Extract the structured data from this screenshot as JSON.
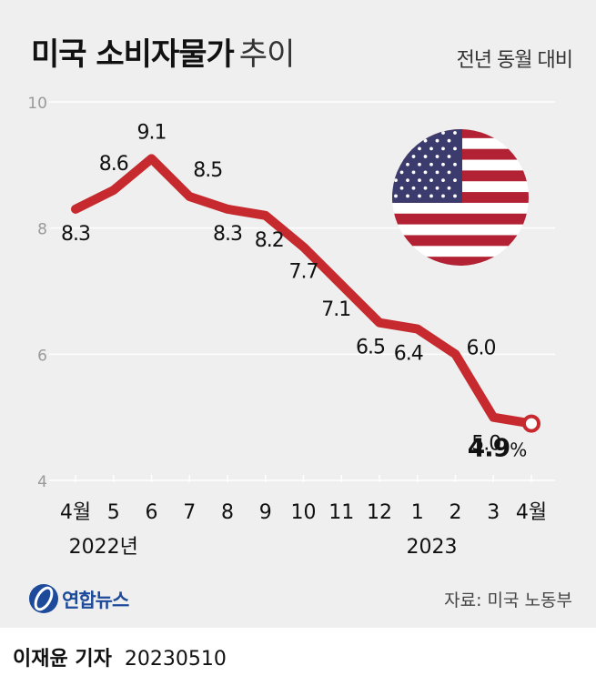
{
  "header": {
    "title_bold": "미국 소비자물가",
    "title_light": "추이",
    "subtitle": "전년 동월 대비"
  },
  "footer": {
    "logo_text": "연합뉴스",
    "source": "자료: 미국 노동부",
    "reporter": "이재윤 기자",
    "date": "20230510"
  },
  "colors": {
    "line": "#c62a2e",
    "accent": "#c62a2e",
    "background": "#efefef",
    "grid": "#ffffff"
  },
  "flag_icon": "us-flag-icon",
  "chart_data": {
    "type": "line",
    "categories": [
      "4월",
      "5",
      "6",
      "7",
      "8",
      "9",
      "10",
      "11",
      "12",
      "1",
      "2",
      "3",
      "4월"
    ],
    "year_labels": [
      {
        "category_index": 1,
        "label": "2022년"
      },
      {
        "category_index": 10,
        "label": "2023"
      }
    ],
    "series": [
      {
        "values": [
          8.3,
          8.6,
          9.1,
          8.5,
          8.3,
          8.2,
          7.7,
          7.1,
          6.5,
          6.4,
          6.0,
          5.0,
          4.9
        ]
      }
    ],
    "data_labels": [
      "8.3",
      "8.6",
      "9.1",
      "8.5",
      "8.3",
      "8.2",
      "7.7",
      "7.1",
      "6.5",
      "6.4",
      "6.0",
      "5.0",
      "4.9"
    ],
    "highlight_unit": "%",
    "ylim": [
      4,
      10
    ],
    "yticks": [
      4,
      6,
      8,
      10
    ],
    "ytick_labels": [
      "4",
      "6",
      "8",
      "10"
    ],
    "grid": true
  }
}
